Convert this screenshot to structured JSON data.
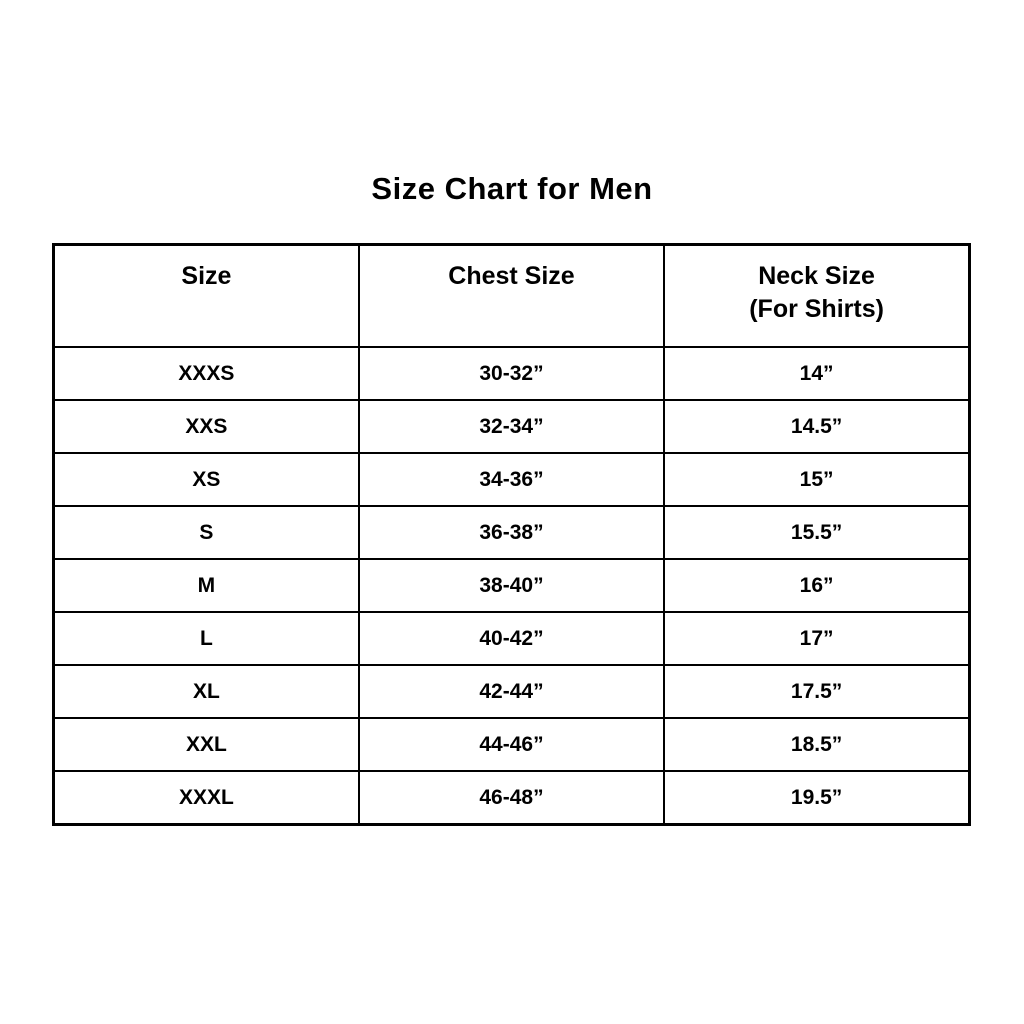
{
  "title": "Size Chart for Men",
  "colors": {
    "background": "#ffffff",
    "text": "#000000",
    "border": "#000000"
  },
  "table": {
    "headers": [
      {
        "line1": "Size",
        "line2": ""
      },
      {
        "line1": "Chest Size",
        "line2": ""
      },
      {
        "line1": "Neck Size",
        "line2": "(For Shirts)"
      }
    ]
  },
  "chart_data": {
    "type": "table",
    "title": "Size Chart for Men",
    "columns": [
      "Size",
      "Chest Size",
      "Neck Size (For Shirts)"
    ],
    "rows": [
      [
        "XXXS",
        "30-32”",
        "14”"
      ],
      [
        "XXS",
        "32-34”",
        "14.5”"
      ],
      [
        "XS",
        "34-36”",
        "15”"
      ],
      [
        "S",
        "36-38”",
        "15.5”"
      ],
      [
        "M",
        "38-40”",
        "16”"
      ],
      [
        "L",
        "40-42”",
        "17”"
      ],
      [
        "XL",
        "42-44”",
        "17.5”"
      ],
      [
        "XXL",
        "44-46”",
        "18.5”"
      ],
      [
        "XXXL",
        "46-48”",
        "19.5”"
      ]
    ]
  }
}
